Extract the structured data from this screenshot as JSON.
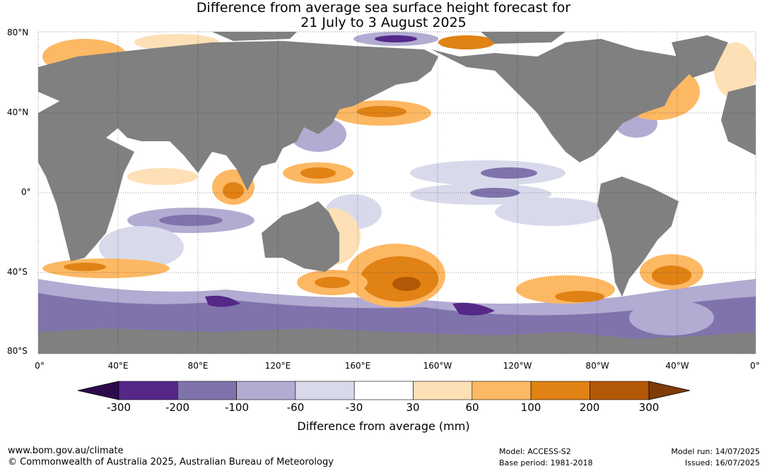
{
  "title_line1": "Difference from average sea surface height forecast for",
  "title_line2": "21 July to 3 August 2025",
  "lat_labels": [
    "80°N",
    "40°N",
    "0°",
    "40°S",
    "80°S"
  ],
  "lon_labels": [
    "0°",
    "40°E",
    "80°E",
    "120°E",
    "160°E",
    "160°W",
    "120°W",
    "80°W",
    "40°W",
    "0°"
  ],
  "colorbar": {
    "title": "Difference from average (mm)",
    "ticks": [
      "-300",
      "-200",
      "-100",
      "-60",
      "-30",
      "30",
      "60",
      "100",
      "200",
      "300"
    ],
    "under_color": "#2d0a4e",
    "over_color": "#7f3b08",
    "bins": [
      "#542788",
      "#8073ac",
      "#b2abd2",
      "#d8daeb",
      "#ffffff",
      "#fee0b6",
      "#fdb863",
      "#e08214",
      "#b35806"
    ]
  },
  "footer": {
    "url": "www.bom.gov.au/climate",
    "copyright": "© Commonwealth of Australia 2025, Australian Bureau of Meteorology",
    "model": "Model: ACCESS-S2",
    "base_period": "Base period: 1981-2018",
    "model_run": "Model run: 14/07/2025",
    "issued": "Issued: 16/07/2025"
  },
  "colors": {
    "land": "#808080",
    "ocean_neutral": "#ffffff"
  }
}
